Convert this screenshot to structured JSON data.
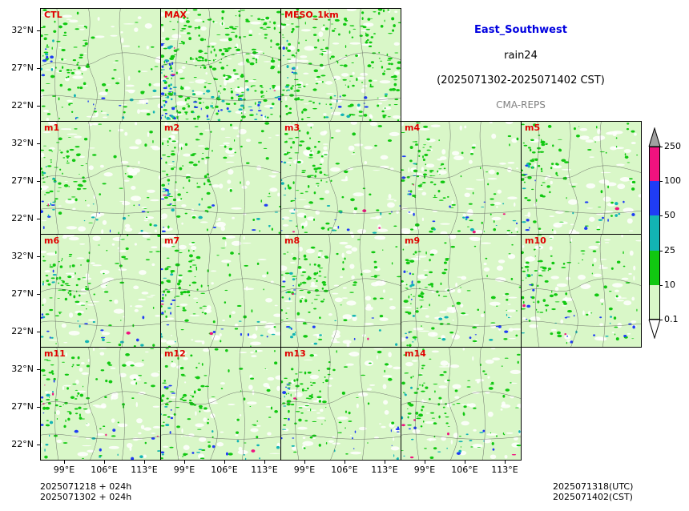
{
  "info": {
    "region": "East_Southwest",
    "variable": "rain24",
    "period": "(2025071302-2025071402 CST)",
    "system": "CMA-REPS"
  },
  "panels": [
    {
      "label": "CTL",
      "row": 0,
      "col": 0
    },
    {
      "label": "MAX",
      "row": 0,
      "col": 1
    },
    {
      "label": "MESO_1km",
      "row": 0,
      "col": 2
    },
    {
      "label": "m1",
      "row": 1,
      "col": 0
    },
    {
      "label": "m2",
      "row": 1,
      "col": 1
    },
    {
      "label": "m3",
      "row": 1,
      "col": 2
    },
    {
      "label": "m4",
      "row": 1,
      "col": 3
    },
    {
      "label": "m5",
      "row": 1,
      "col": 4
    },
    {
      "label": "m6",
      "row": 2,
      "col": 0
    },
    {
      "label": "m7",
      "row": 2,
      "col": 1
    },
    {
      "label": "m8",
      "row": 2,
      "col": 2
    },
    {
      "label": "m9",
      "row": 2,
      "col": 3
    },
    {
      "label": "m10",
      "row": 2,
      "col": 4
    },
    {
      "label": "m11",
      "row": 3,
      "col": 0
    },
    {
      "label": "m12",
      "row": 3,
      "col": 1
    },
    {
      "label": "m13",
      "row": 3,
      "col": 2
    },
    {
      "label": "m14",
      "row": 3,
      "col": 3
    }
  ],
  "axes": {
    "lat_labels": [
      "32°N",
      "27°N",
      "22°N"
    ],
    "lon_labels": [
      "99°E",
      "106°E",
      "113°E"
    ]
  },
  "colorbar": {
    "labels": [
      "250",
      "100",
      "50",
      "25",
      "10",
      "0.1"
    ],
    "colors": [
      "#f0127f",
      "#1f3cf5",
      "#12b4b4",
      "#11c811",
      "#d9f7c8",
      "#ffffff"
    ],
    "over_color": "#a0a0a0"
  },
  "footer": {
    "init_utc": "2025071218  +  024h",
    "init_cst": "2025071302  +  024h",
    "valid_utc": "2025071318(UTC)",
    "valid_cst": "2025071402(CST)"
  }
}
